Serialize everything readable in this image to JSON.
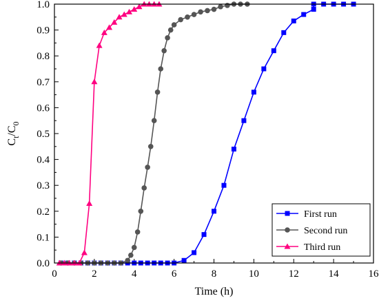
{
  "chart_data": {
    "type": "line",
    "xlabel": "Time (h)",
    "ylabel": {
      "main": "C",
      "sub1": "t",
      "slash": "/C",
      "sub2": "0"
    },
    "xlim": [
      0,
      16
    ],
    "ylim": [
      0,
      1.0
    ],
    "xticks": [
      "0",
      "2",
      "4",
      "6",
      "8",
      "10",
      "12",
      "14",
      "16"
    ],
    "yticks": [
      "0.0",
      "0.1",
      "0.2",
      "0.3",
      "0.4",
      "0.5",
      "0.6",
      "0.7",
      "0.8",
      "0.9",
      "1.0"
    ],
    "legend_position": "bottom-right",
    "series": [
      {
        "name": "First run",
        "marker": "square",
        "color": "#0000ff",
        "points": [
          [
            0.33,
            0.0
          ],
          [
            0.67,
            0.0
          ],
          [
            1.0,
            0.0
          ],
          [
            1.33,
            0.0
          ],
          [
            1.67,
            0.0
          ],
          [
            2.0,
            0.0
          ],
          [
            2.33,
            0.0
          ],
          [
            2.67,
            0.0
          ],
          [
            3.0,
            0.0
          ],
          [
            3.33,
            0.0
          ],
          [
            3.67,
            0.0
          ],
          [
            4.0,
            0.0
          ],
          [
            4.33,
            0.0
          ],
          [
            4.67,
            0.0
          ],
          [
            5.0,
            0.0
          ],
          [
            5.33,
            0.0
          ],
          [
            5.67,
            0.0
          ],
          [
            6.0,
            0.0
          ],
          [
            6.5,
            0.01
          ],
          [
            7.0,
            0.04
          ],
          [
            7.5,
            0.11
          ],
          [
            8.0,
            0.2
          ],
          [
            8.5,
            0.3
          ],
          [
            9.0,
            0.44
          ],
          [
            9.5,
            0.55
          ],
          [
            10.0,
            0.66
          ],
          [
            10.5,
            0.75
          ],
          [
            11.0,
            0.82
          ],
          [
            11.5,
            0.89
          ],
          [
            12.0,
            0.935
          ],
          [
            12.5,
            0.96
          ],
          [
            13.0,
            0.98
          ],
          [
            13.0,
            1.0
          ],
          [
            13.5,
            1.0
          ],
          [
            14.0,
            1.0
          ],
          [
            14.5,
            1.0
          ],
          [
            15.0,
            1.0
          ]
        ]
      },
      {
        "name": "Second run",
        "marker": "circle",
        "color": "#555555",
        "points": [
          [
            0.33,
            0.0
          ],
          [
            0.67,
            0.0
          ],
          [
            1.0,
            0.0
          ],
          [
            1.33,
            0.0
          ],
          [
            1.67,
            0.0
          ],
          [
            2.0,
            0.0
          ],
          [
            2.33,
            0.0
          ],
          [
            2.67,
            0.0
          ],
          [
            3.0,
            0.0
          ],
          [
            3.33,
            0.0
          ],
          [
            3.67,
            0.01
          ],
          [
            3.83,
            0.03
          ],
          [
            4.0,
            0.06
          ],
          [
            4.17,
            0.12
          ],
          [
            4.33,
            0.2
          ],
          [
            4.5,
            0.29
          ],
          [
            4.67,
            0.37
          ],
          [
            4.83,
            0.45
          ],
          [
            5.0,
            0.55
          ],
          [
            5.17,
            0.66
          ],
          [
            5.33,
            0.75
          ],
          [
            5.5,
            0.82
          ],
          [
            5.67,
            0.87
          ],
          [
            5.83,
            0.9
          ],
          [
            6.0,
            0.92
          ],
          [
            6.33,
            0.94
          ],
          [
            6.67,
            0.95
          ],
          [
            7.0,
            0.96
          ],
          [
            7.33,
            0.97
          ],
          [
            7.67,
            0.975
          ],
          [
            8.0,
            0.98
          ],
          [
            8.33,
            0.99
          ],
          [
            8.67,
            0.995
          ],
          [
            9.0,
            1.0
          ],
          [
            9.33,
            1.0
          ],
          [
            9.67,
            1.0
          ]
        ]
      },
      {
        "name": "Third run",
        "marker": "triangle",
        "color": "#ff0080",
        "points": [
          [
            0.25,
            0.0
          ],
          [
            0.5,
            0.0
          ],
          [
            0.75,
            0.0
          ],
          [
            1.0,
            0.0
          ],
          [
            1.25,
            0.0
          ],
          [
            1.5,
            0.04
          ],
          [
            1.75,
            0.23
          ],
          [
            2.0,
            0.7
          ],
          [
            2.25,
            0.84
          ],
          [
            2.5,
            0.89
          ],
          [
            2.75,
            0.91
          ],
          [
            3.0,
            0.93
          ],
          [
            3.25,
            0.95
          ],
          [
            3.5,
            0.96
          ],
          [
            3.75,
            0.97
          ],
          [
            4.0,
            0.98
          ],
          [
            4.25,
            0.99
          ],
          [
            4.5,
            1.0
          ],
          [
            4.75,
            1.0
          ],
          [
            5.0,
            1.0
          ],
          [
            5.25,
            1.0
          ]
        ]
      }
    ]
  }
}
